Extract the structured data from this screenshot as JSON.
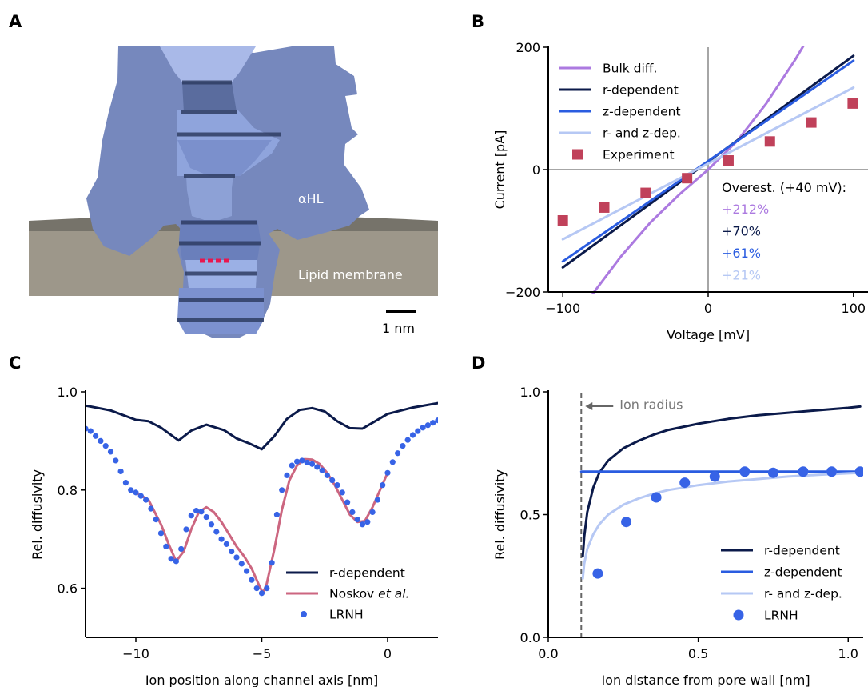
{
  "panels": {
    "a": "A",
    "b": "B",
    "c": "C",
    "d": "D"
  },
  "structure": {
    "protein_label": "αHL",
    "membrane_label": "Lipid membrane",
    "scale_label": "1 nm",
    "colors": {
      "protein": "#7688bd",
      "pore_light": "#a9b9e8",
      "pore_dark": "#2f3d63",
      "membrane": "#9d978a",
      "membrane_top": "#76736a",
      "ion_marker": "#e8174e"
    }
  },
  "chart_data": [
    {
      "id": "B",
      "type": "line",
      "xlabel": "Voltage [mV]",
      "ylabel": "Current [pA]",
      "xlim": [
        -110,
        110
      ],
      "ylim": [
        -200,
        200
      ],
      "xticks": [
        -100,
        0,
        100
      ],
      "xtick_labels": [
        "−100",
        "0",
        "100"
      ],
      "yticks": [
        -200,
        0,
        200
      ],
      "ytick_labels": [
        "−200",
        "0",
        "200"
      ],
      "zero_lines": true,
      "legend_position": "top-left",
      "series": [
        {
          "name": "Bulk diff.",
          "color": "#ac7ae0",
          "width": 3,
          "x": [
            -80,
            -60,
            -40,
            -20,
            0,
            20,
            40,
            60,
            80
          ],
          "y": [
            -205,
            -142,
            -87,
            -41,
            0,
            47,
            108,
            180,
            260
          ]
        },
        {
          "name": "r-dependent",
          "color": "#0b1a4a",
          "width": 3,
          "x": [
            -100,
            100
          ],
          "y": [
            -160,
            186
          ]
        },
        {
          "name": "z-dependent",
          "color": "#2a5ce0",
          "width": 3,
          "x": [
            -100,
            100
          ],
          "y": [
            -150,
            178
          ]
        },
        {
          "name": "r- and z-dep.",
          "color": "#b6c8f4",
          "width": 3,
          "x": [
            -100,
            100
          ],
          "y": [
            -114,
            134
          ]
        },
        {
          "name": "Experiment",
          "kind": "markers",
          "marker": "square",
          "color": "#c0415a",
          "x": [
            -100,
            -71.5,
            -43,
            -14.5,
            14,
            42.5,
            71,
            99.5
          ],
          "y": [
            -83,
            -62,
            -38,
            -14,
            15,
            46,
            77,
            108
          ]
        }
      ],
      "annotation": {
        "title": "Overest. (+40 mV):",
        "lines": [
          {
            "text": "+212%",
            "color": "#ac7ae0"
          },
          {
            "text": "+70%",
            "color": "#0b1a4a"
          },
          {
            "text": "+61%",
            "color": "#2a5ce0"
          },
          {
            "text": "+21%",
            "color": "#b6c8f4"
          }
        ]
      }
    },
    {
      "id": "C",
      "type": "line",
      "xlabel": "Ion position along channel axis [nm]",
      "ylabel": "Rel. diffusivity",
      "xlim": [
        -12,
        2
      ],
      "ylim": [
        0.5,
        1.0
      ],
      "xticks": [
        -10,
        -5,
        0
      ],
      "xtick_labels": [
        "−10",
        "−5",
        "0"
      ],
      "yticks": [
        0.6,
        0.8,
        1.0
      ],
      "ytick_labels": [
        "0.6",
        "0.8",
        "1.0"
      ],
      "legend_position": "bottom-right",
      "series": [
        {
          "name": "r-dependent",
          "color": "#0b1a4a",
          "width": 3,
          "x": [
            -12,
            -11,
            -10,
            -9.5,
            -9,
            -8.3,
            -7.8,
            -7.2,
            -6.5,
            -6,
            -5.5,
            -5,
            -4.5,
            -4,
            -3.5,
            -3,
            -2.5,
            -2,
            -1.5,
            -1,
            -0.5,
            0,
            1,
            2
          ],
          "y": [
            0.972,
            0.962,
            0.943,
            0.94,
            0.927,
            0.901,
            0.921,
            0.933,
            0.922,
            0.905,
            0.895,
            0.883,
            0.91,
            0.945,
            0.963,
            0.967,
            0.96,
            0.94,
            0.926,
            0.925,
            0.94,
            0.955,
            0.968,
            0.977
          ]
        },
        {
          "name": "Noskov et al.",
          "color": "#cc6680",
          "width": 3,
          "x": [
            -10,
            -9.5,
            -9,
            -8.7,
            -8.4,
            -8.1,
            -7.8,
            -7.5,
            -7.2,
            -6.9,
            -6.6,
            -6.3,
            -6,
            -5.7,
            -5.4,
            -5.1,
            -4.95,
            -4.8,
            -4.5,
            -4.2,
            -3.9,
            -3.6,
            -3.3,
            -3.0,
            -2.7,
            -2.4,
            -2.1,
            -1.8,
            -1.5,
            -1.2,
            -0.9,
            -0.6,
            -0.3,
            0
          ],
          "y": [
            0.795,
            0.78,
            0.73,
            0.69,
            0.655,
            0.675,
            0.72,
            0.755,
            0.765,
            0.755,
            0.735,
            0.71,
            0.685,
            0.665,
            0.64,
            0.605,
            0.59,
            0.61,
            0.68,
            0.76,
            0.82,
            0.85,
            0.863,
            0.862,
            0.853,
            0.835,
            0.81,
            0.78,
            0.75,
            0.735,
            0.737,
            0.765,
            0.8,
            0.835
          ]
        },
        {
          "name": "LRNH",
          "kind": "markers",
          "marker": "circle",
          "color": "#3763e6",
          "x": [
            -12,
            -11.8,
            -11.6,
            -11.4,
            -11.2,
            -11,
            -10.8,
            -10.6,
            -10.4,
            -10.2,
            -10,
            -9.8,
            -9.6,
            -9.4,
            -9.2,
            -9,
            -8.8,
            -8.6,
            -8.4,
            -8.2,
            -8,
            -7.8,
            -7.6,
            -7.4,
            -7.2,
            -7,
            -6.8,
            -6.6,
            -6.4,
            -6.2,
            -6,
            -5.8,
            -5.6,
            -5.4,
            -5.2,
            -5,
            -4.8,
            -4.6,
            -4.4,
            -4.2,
            -4,
            -3.8,
            -3.6,
            -3.4,
            -3.2,
            -3,
            -2.8,
            -2.6,
            -2.4,
            -2.2,
            -2,
            -1.8,
            -1.6,
            -1.4,
            -1.2,
            -1,
            -0.8,
            -0.6,
            -0.4,
            -0.2,
            0,
            0.2,
            0.4,
            0.6,
            0.8,
            1,
            1.2,
            1.4,
            1.6,
            1.8,
            2
          ],
          "y": [
            0.925,
            0.92,
            0.91,
            0.9,
            0.89,
            0.878,
            0.86,
            0.838,
            0.815,
            0.8,
            0.795,
            0.788,
            0.78,
            0.762,
            0.74,
            0.712,
            0.685,
            0.66,
            0.655,
            0.68,
            0.72,
            0.748,
            0.758,
            0.756,
            0.745,
            0.73,
            0.715,
            0.7,
            0.69,
            0.675,
            0.663,
            0.65,
            0.635,
            0.617,
            0.6,
            0.59,
            0.6,
            0.652,
            0.75,
            0.8,
            0.83,
            0.85,
            0.858,
            0.86,
            0.856,
            0.853,
            0.847,
            0.84,
            0.83,
            0.82,
            0.81,
            0.795,
            0.775,
            0.755,
            0.74,
            0.73,
            0.735,
            0.755,
            0.78,
            0.81,
            0.835,
            0.857,
            0.875,
            0.89,
            0.902,
            0.912,
            0.92,
            0.927,
            0.932,
            0.937,
            0.942
          ]
        }
      ]
    },
    {
      "id": "D",
      "type": "line",
      "xlabel": "Ion distance from pore wall [nm]",
      "ylabel": "Rel. diffusivity",
      "xlim": [
        0,
        1.05
      ],
      "ylim": [
        0,
        1.0
      ],
      "xticks": [
        0,
        0.5,
        1.0
      ],
      "xtick_labels": [
        "0.0",
        "0.5",
        "1.0"
      ],
      "yticks": [
        0,
        0.5,
        1.0
      ],
      "ytick_labels": [
        "0.0",
        "0.5",
        "1.0"
      ],
      "legend_position": "bottom-right",
      "ion_radius": 0.11,
      "ion_radius_label": "Ion radius",
      "series": [
        {
          "name": "r-dependent",
          "color": "#0b1a4a",
          "width": 3,
          "x": [
            0.115,
            0.12,
            0.13,
            0.15,
            0.17,
            0.2,
            0.25,
            0.3,
            0.35,
            0.4,
            0.5,
            0.6,
            0.7,
            0.8,
            0.9,
            1.0,
            1.04
          ],
          "y": [
            0.33,
            0.41,
            0.51,
            0.61,
            0.67,
            0.72,
            0.77,
            0.8,
            0.825,
            0.845,
            0.87,
            0.89,
            0.905,
            0.915,
            0.925,
            0.935,
            0.94
          ]
        },
        {
          "name": "z-dependent",
          "color": "#2a5ce0",
          "width": 3,
          "x": [
            0.11,
            1.04
          ],
          "y": [
            0.675,
            0.675
          ]
        },
        {
          "name": "r- and z-dep.",
          "color": "#b6c8f4",
          "width": 3,
          "x": [
            0.115,
            0.12,
            0.13,
            0.15,
            0.17,
            0.2,
            0.25,
            0.3,
            0.35,
            0.4,
            0.5,
            0.6,
            0.7,
            0.8,
            0.9,
            1.0,
            1.04
          ],
          "y": [
            0.24,
            0.3,
            0.36,
            0.42,
            0.46,
            0.5,
            0.54,
            0.565,
            0.585,
            0.6,
            0.62,
            0.635,
            0.645,
            0.655,
            0.662,
            0.668,
            0.67
          ]
        },
        {
          "name": "LRNH",
          "kind": "markers",
          "marker": "circle",
          "color": "#3763e6",
          "x": [
            0.165,
            0.26,
            0.36,
            0.455,
            0.555,
            0.655,
            0.75,
            0.85,
            0.945,
            1.04
          ],
          "y": [
            0.26,
            0.47,
            0.57,
            0.63,
            0.655,
            0.675,
            0.67,
            0.675,
            0.675,
            0.675
          ]
        }
      ]
    }
  ]
}
